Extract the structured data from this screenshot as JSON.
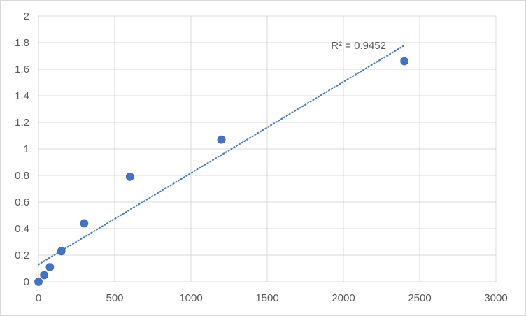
{
  "chart_data": {
    "type": "scatter",
    "title": "",
    "xlabel": "",
    "ylabel": "",
    "xlim": [
      0,
      3000
    ],
    "ylim": [
      0,
      2
    ],
    "x_ticks": [
      "0",
      "500",
      "1000",
      "1500",
      "2000",
      "2500",
      "3000"
    ],
    "y_ticks": [
      "0",
      "0.2",
      "0.4",
      "0.6",
      "0.8",
      "1",
      "1.2",
      "1.4",
      "1.6",
      "1.8",
      "2"
    ],
    "grid": true,
    "legend": "none",
    "series": [
      {
        "color": "#4472c4",
        "points": [
          {
            "x": 0,
            "y": 0
          },
          {
            "x": 37.5,
            "y": 0.05
          },
          {
            "x": 75,
            "y": 0.11
          },
          {
            "x": 150,
            "y": 0.23
          },
          {
            "x": 300,
            "y": 0.44
          },
          {
            "x": 600,
            "y": 0.79
          },
          {
            "x": 1200,
            "y": 1.07
          },
          {
            "x": 2400,
            "y": 1.66
          }
        ]
      }
    ],
    "trendline": {
      "type": "linear",
      "style": "dotted",
      "color": "#4a7ebb",
      "x_range": [
        0,
        2400
      ],
      "y_at_start": 0.13,
      "y_at_end": 1.78,
      "annotation": "R² = 0.9452"
    }
  }
}
